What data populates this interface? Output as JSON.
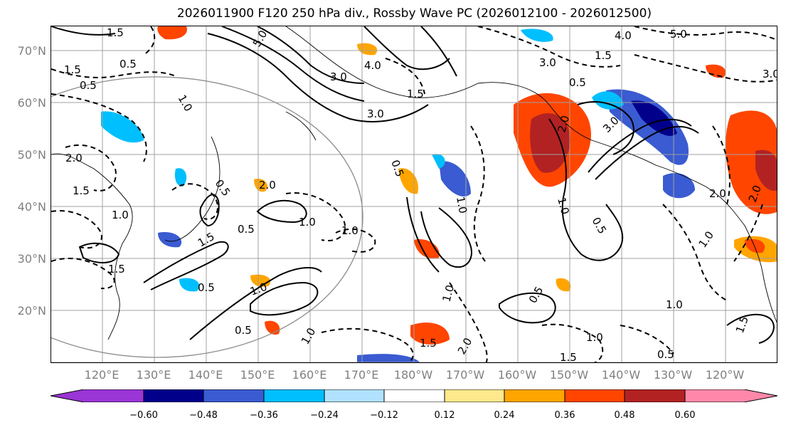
{
  "title": "2026011900 F120 250 hPa div., Rossby Wave PC (2026012100 - 2026012500)",
  "map": {
    "lat_labels": [
      "70°N",
      "60°N",
      "50°N",
      "40°N",
      "30°N",
      "20°N"
    ],
    "lon_labels": [
      "120°E",
      "130°E",
      "140°E",
      "150°E",
      "160°E",
      "170°E",
      "180°W",
      "170°W",
      "160°W",
      "150°W",
      "140°W",
      "130°W",
      "120°W"
    ],
    "contour_labels": [
      "1.5",
      "5.0",
      "0.5",
      "1.5",
      "0.5",
      "1.0",
      "4.0",
      "3.0",
      "3.0",
      "2.0",
      "1.5",
      "1.0",
      "0.5",
      "2.0",
      "1.5",
      "1.0",
      "0.5",
      "0.5",
      "1.0",
      "1.5",
      "0.5",
      "1.0",
      "0.5",
      "1.0",
      "1.5",
      "2.0",
      "1.0",
      "0.5",
      "1.5",
      "2.0",
      "3.0",
      "4.0",
      "5.0",
      "3.0",
      "1.5",
      "0.5",
      "3.0",
      "2.0",
      "1.0",
      "2.0",
      "1.0",
      "0.5",
      "1.0",
      "1.5",
      "0.5",
      "1.0",
      "1.0",
      "1.5"
    ],
    "colors": {
      "grid": "#a0a0a0",
      "circle": "#8c8c8c",
      "contour": "#000000"
    }
  },
  "colorbar": {
    "colors": [
      "#9a35d6",
      "#00008b",
      "#3a5bd1",
      "#00bfff",
      "#b0e2ff",
      "#ffffff",
      "#ffe98c",
      "#ffa500",
      "#ff4500",
      "#b22222",
      "#ff88aa"
    ],
    "ticks": [
      "−0.60",
      "−0.48",
      "−0.36",
      "−0.24",
      "−0.12",
      "0.12",
      "0.24",
      "0.36",
      "0.48",
      "0.60"
    ]
  }
}
